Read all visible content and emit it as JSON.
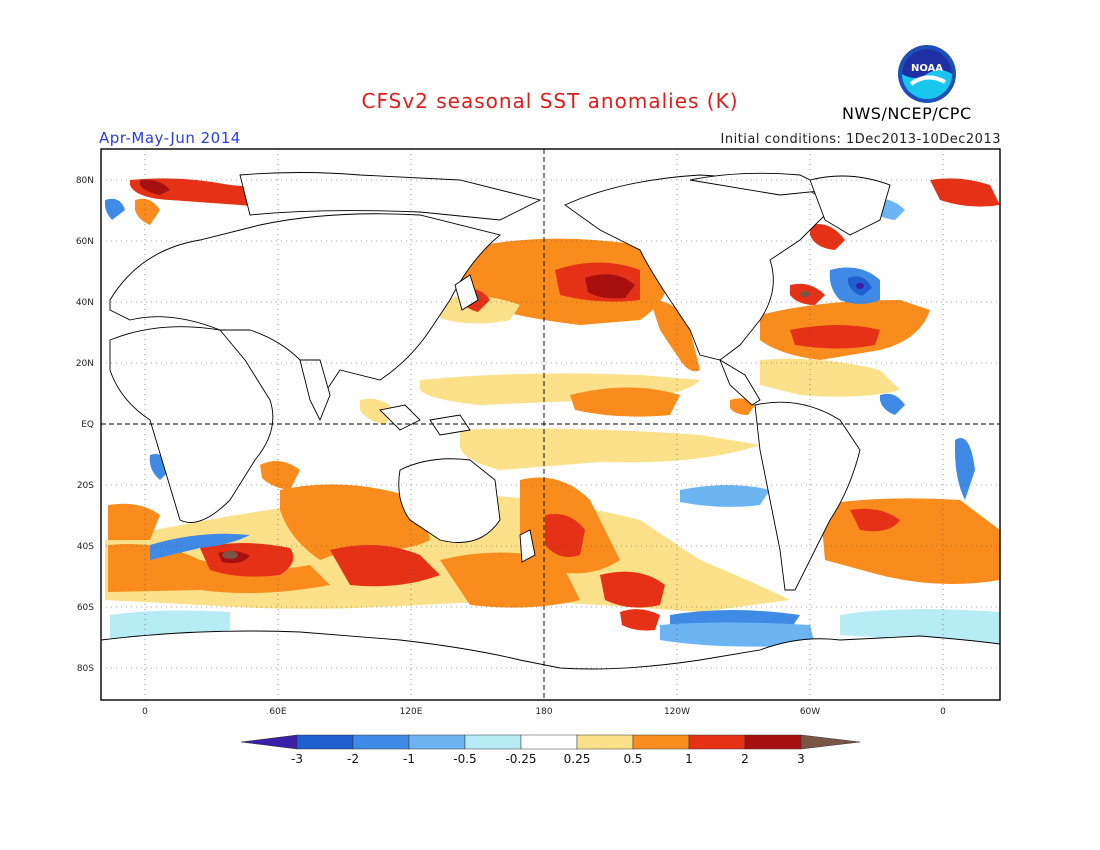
{
  "header": {
    "title": "CFSv2 seasonal SST anomalies (K)",
    "period": "Apr-May-Jun 2014",
    "initial_conditions": "Initial conditions: 1Dec2013-10Dec2013",
    "agency": "NWS/NCEP/CPC",
    "logo_text": "NOAA"
  },
  "map": {
    "lat_ticks": [
      "80N",
      "60N",
      "40N",
      "20N",
      "EQ",
      "20S",
      "40S",
      "60S",
      "80S"
    ],
    "lon_ticks": [
      "0",
      "60E",
      "120E",
      "180",
      "120W",
      "60W",
      "0"
    ],
    "ocean_color": "#ffffff",
    "coastline_color": "#000000"
  },
  "colorbar": {
    "labels": [
      "-3",
      "-2",
      "-1",
      "-0.5",
      "-0.25",
      "0.25",
      "0.5",
      "1",
      "2",
      "3"
    ],
    "colors": [
      "#3a1fa8",
      "#1f5fd0",
      "#3f8ae4",
      "#6cb4f2",
      "#b8ecf4",
      "#ffffff",
      "#fde08a",
      "#f98c1c",
      "#e53216",
      "#a81010",
      "#7a5444"
    ]
  }
}
